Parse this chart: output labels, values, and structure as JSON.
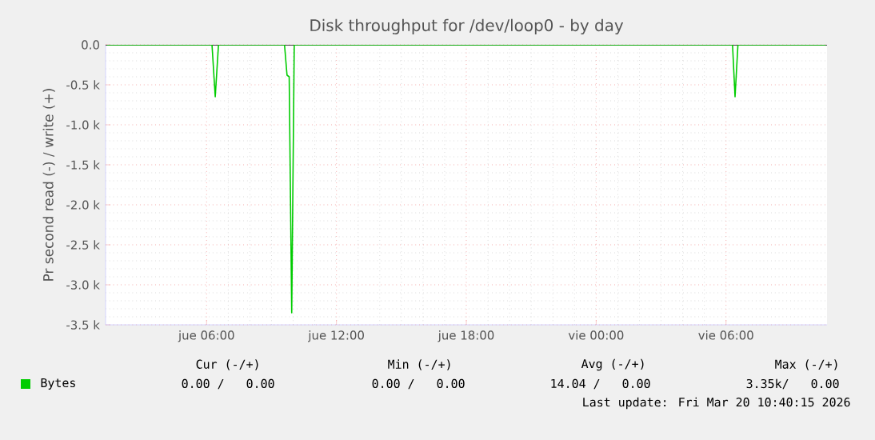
{
  "chart_data": {
    "type": "line",
    "title": "Disk throughput for /dev/loop0 - by day",
    "ylabel": "Pr second read (-) / write (+)",
    "x": [
      "2026-03-19T01:24",
      "2026-03-19T06:15",
      "2026-03-19T06:24",
      "2026-03-19T06:33",
      "2026-03-19T09:36",
      "2026-03-19T09:43",
      "2026-03-19T09:49",
      "2026-03-19T09:56",
      "2026-03-19T10:03",
      "2026-03-20T06:18",
      "2026-03-20T06:25",
      "2026-03-20T06:33",
      "2026-03-20T10:36"
    ],
    "series": [
      {
        "name": "Bytes",
        "color": "#00cc00",
        "values": [
          0,
          0,
          -650,
          0,
          0,
          -380,
          -400,
          -3350,
          0,
          0,
          -650,
          0,
          0
        ]
      }
    ],
    "xlim": [
      "2026-03-19T01:20",
      "2026-03-20T10:40"
    ],
    "xticks": [
      {
        "value": "2026-03-19T06:00",
        "label": "jue 06:00"
      },
      {
        "value": "2026-03-19T12:00",
        "label": "jue 12:00"
      },
      {
        "value": "2026-03-19T18:00",
        "label": "jue 18:00"
      },
      {
        "value": "2026-03-20T00:00",
        "label": "vie 00:00"
      },
      {
        "value": "2026-03-20T06:00",
        "label": "vie 06:00"
      }
    ],
    "ylim": [
      -3500,
      0
    ],
    "yticks": [
      {
        "value": 0,
        "label": "0.0"
      },
      {
        "value": -500,
        "label": "-0.5 k"
      },
      {
        "value": -1000,
        "label": "-1.0 k"
      },
      {
        "value": -1500,
        "label": "-1.5 k"
      },
      {
        "value": -2000,
        "label": "-2.0 k"
      },
      {
        "value": -2500,
        "label": "-2.5 k"
      },
      {
        "value": -3000,
        "label": "-3.0 k"
      },
      {
        "value": -3500,
        "label": "-3.5 k"
      }
    ],
    "grid": true,
    "legend": "bottom",
    "marker": "none",
    "line_style": "solid",
    "annotations": [
      "Cur (-/+)",
      "Min (-/+)",
      "Avg (-/+)",
      "Max (-/+)",
      "0.00 /   0.00",
      "0.00 /   0.00",
      "14.04 /   0.00",
      "3.35k/   0.00",
      "Last update: Fri Mar 20 10:40:15 2026"
    ]
  }
}
